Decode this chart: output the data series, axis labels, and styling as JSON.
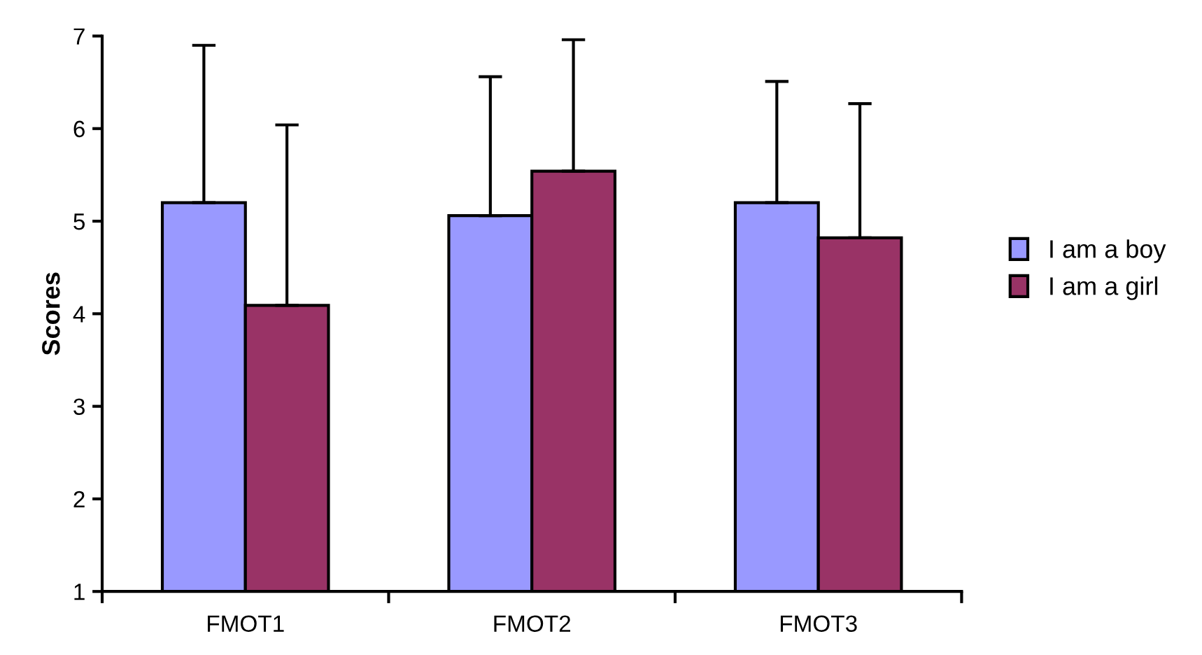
{
  "chart_data": {
    "type": "bar",
    "ylabel": "Scores",
    "categories": [
      "FMOT1",
      "FMOT2",
      "FMOT3"
    ],
    "series": [
      {
        "name": "I am a boy",
        "color": "#9999ff",
        "values": [
          5.2,
          5.06,
          5.2
        ],
        "errors": [
          [
            5.2,
            6.9
          ],
          [
            5.06,
            6.56
          ],
          [
            5.2,
            6.51
          ]
        ]
      },
      {
        "name": "I am a girl",
        "color": "#993366",
        "values": [
          4.09,
          5.54,
          4.82
        ],
        "errors": [
          [
            4.09,
            6.04
          ],
          [
            5.54,
            6.96
          ],
          [
            4.82,
            6.27
          ]
        ]
      }
    ],
    "ylim": [
      1,
      7
    ],
    "yticks": [
      1,
      2,
      3,
      4,
      5,
      6,
      7
    ],
    "grid": false,
    "legend": "right"
  }
}
